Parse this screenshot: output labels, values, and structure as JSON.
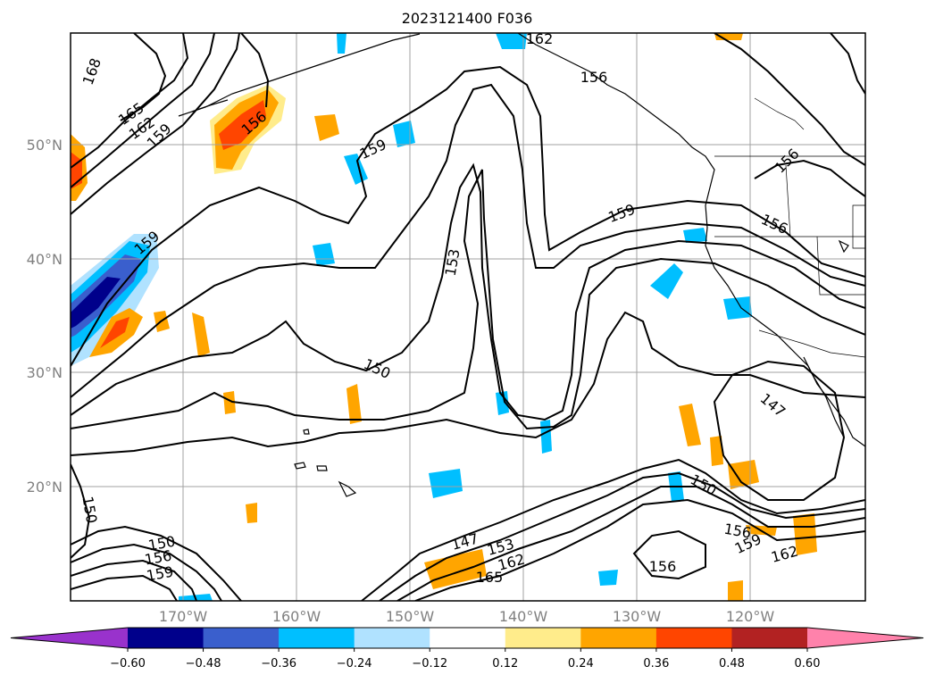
{
  "title": "2023121400 F036",
  "lat_labels": [
    "50°N",
    "40°N",
    "30°N",
    "20°N"
  ],
  "lon_labels": [
    "170°W",
    "160°W",
    "150°W",
    "140°W",
    "130°W",
    "120°W"
  ],
  "contour_labels": [
    "168",
    "165",
    "162",
    "159",
    "156",
    "159",
    "153",
    "162",
    "156",
    "159",
    "156",
    "150",
    "147",
    "150",
    "150",
    "156",
    "159",
    "162",
    "147",
    "153",
    "162",
    "165",
    "156",
    "150",
    "156",
    "159"
  ],
  "colorbar": {
    "ticks": [
      "−0.60",
      "−0.48",
      "−0.36",
      "−0.24",
      "−0.12",
      "0.12",
      "0.24",
      "0.36",
      "0.48",
      "0.60"
    ],
    "colors": [
      "#9932cc",
      "#00008b",
      "#3a5fcd",
      "#00bfff",
      "#b0e2ff",
      "#ffffff",
      "#ffec8b",
      "#ffa500",
      "#ff4500",
      "#b22222",
      "#ff82ab"
    ]
  }
}
